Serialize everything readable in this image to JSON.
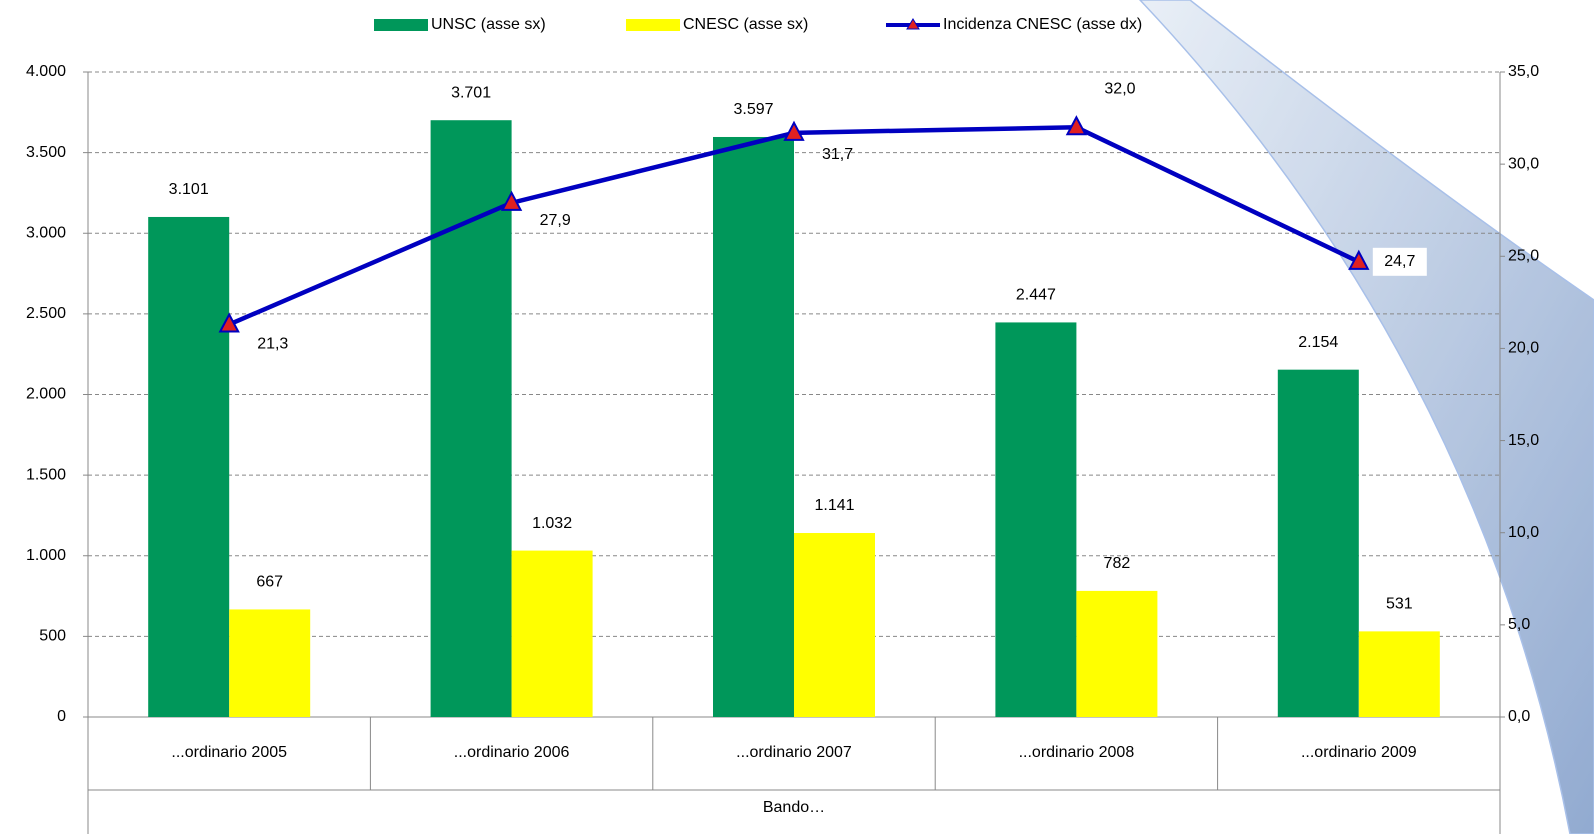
{
  "chart_data": {
    "type": "bar-line",
    "x_label": "Bando…",
    "categories": [
      "...ordinario 2005",
      "...ordinario 2006",
      "...ordinario 2007",
      "...ordinario 2008",
      "...ordinario 2009"
    ],
    "series": [
      {
        "name": "UNSC (asse sx)",
        "type": "bar",
        "color": "#00975a",
        "values": [
          3101,
          3701,
          3597,
          2447,
          2154
        ],
        "value_labels": [
          "3.101",
          "3.701",
          "3.597",
          "2.447",
          "2.154"
        ]
      },
      {
        "name": "CNESC (asse sx)",
        "type": "bar",
        "color": "#ffff00",
        "values": [
          667,
          1032,
          1141,
          782,
          531
        ],
        "value_labels": [
          "667",
          "1.032",
          "1.141",
          "782",
          "531"
        ]
      },
      {
        "name": "Incidenza CNESC (asse dx)",
        "type": "line",
        "axis": "y2",
        "color": "#0000c0",
        "marker_color": "#e02020",
        "values": [
          21.3,
          27.9,
          31.7,
          32.0,
          24.7
        ],
        "value_labels": [
          "21,3",
          "27,9",
          "31,7",
          "32,0",
          "24,7"
        ]
      }
    ],
    "ylim": [
      0,
      4000
    ],
    "yticks": [
      0,
      500,
      {
        "value": 1000,
        "label": "1.000"
      },
      {
        "value": 1500,
        "label": "1.500"
      },
      {
        "value": 2000,
        "label": "2.000"
      },
      {
        "value": 2500,
        "label": "2.500"
      },
      {
        "value": 3000,
        "label": "3.000"
      },
      {
        "value": 3500,
        "label": "3.500"
      },
      {
        "value": 4000,
        "label": "4.000"
      }
    ],
    "y2lim": [
      0,
      35
    ],
    "y2ticks": [
      {
        "value": 0,
        "label": "0,0"
      },
      {
        "value": 5,
        "label": "5,0"
      },
      {
        "value": 10,
        "label": "10,0"
      },
      {
        "value": 15,
        "label": "15,0"
      },
      {
        "value": 20,
        "label": "20,0"
      },
      {
        "value": 25,
        "label": "25,0"
      },
      {
        "value": 30,
        "label": "30,0"
      },
      {
        "value": 35,
        "label": "35,0"
      }
    ],
    "grid": true
  }
}
